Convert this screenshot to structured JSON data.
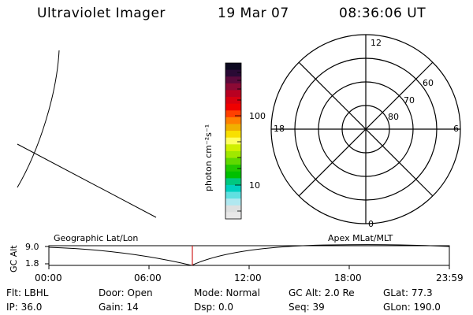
{
  "header": {
    "instrument": "Ultraviolet Imager",
    "date": "19 Mar 07",
    "time": "08:36:06 UT"
  },
  "colorbar": {
    "unit_label": "photon cm⁻²s⁻¹",
    "ticks": [
      "100",
      "10"
    ],
    "colors": [
      "#0c0920",
      "#2a0a35",
      "#5c0a3c",
      "#8c0a35",
      "#b80021",
      "#d80010",
      "#f00000",
      "#ff4000",
      "#ff8000",
      "#f0b000",
      "#f8e000",
      "#ffff60",
      "#d0f000",
      "#a0e800",
      "#60d800",
      "#20c800",
      "#00c000",
      "#00c880",
      "#00d0c0",
      "#60e0e0",
      "#b0e8f0",
      "#dde0e0",
      "#e8e8e8"
    ]
  },
  "polar_plot": {
    "mlt_labels": {
      "top": "12",
      "left": "18",
      "right": "6",
      "bottom": "0"
    },
    "lat_labels": [
      "60",
      "70",
      "80"
    ]
  },
  "timeline": {
    "y_axis_label": "GC Alt",
    "y_max": "9.0",
    "y_min": "1.8",
    "left_title": "Geographic Lat/Lon",
    "right_title": "Apex  MLat/MLT",
    "time_ticks": [
      "00:00",
      "06:00",
      "12:00",
      "18:00",
      "23:59"
    ],
    "marker_time_hours": 8.6
  },
  "footer": {
    "filter": "Flt: LBHL",
    "door": "Door: Open",
    "mode": "Mode: Normal",
    "gc_alt": "GC Alt: 2.0 Re",
    "glat": "GLat:  77.3",
    "ip": "IP: 36.0",
    "gain": "Gain: 14",
    "dsp": "Dsp:     0.0",
    "seq": "Seq: 39",
    "glon": "GLon: 190.0"
  }
}
